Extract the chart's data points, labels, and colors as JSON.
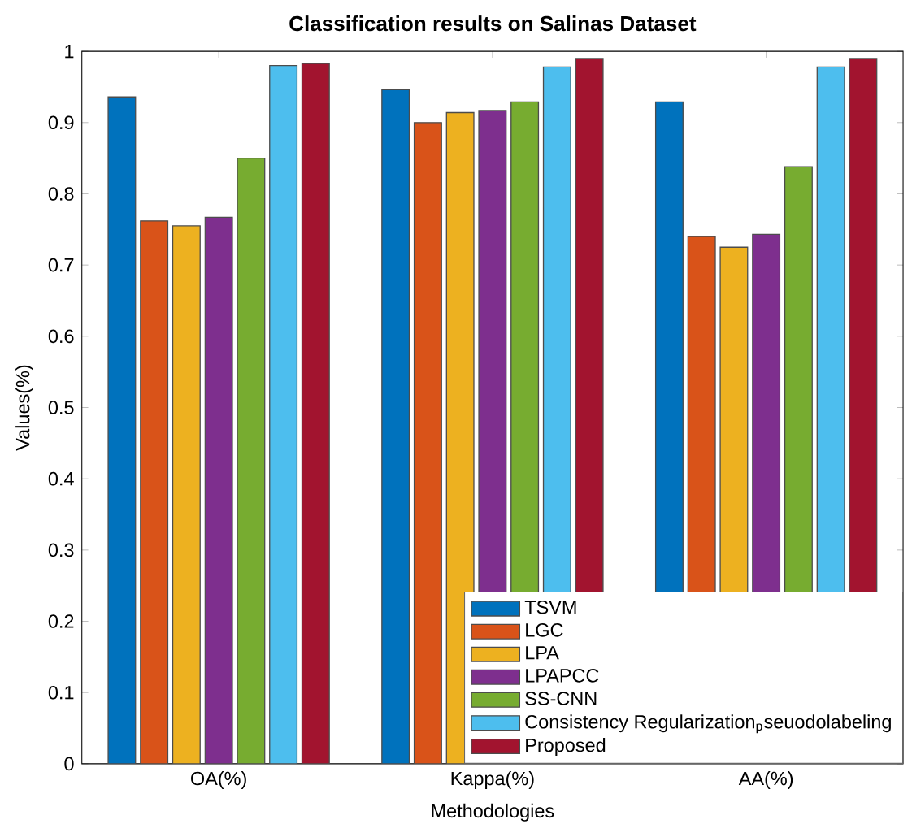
{
  "chart_data": {
    "type": "bar",
    "title": "Classification results on Salinas Dataset",
    "xlabel": "Methodologies",
    "ylabel": "Values(%)",
    "categories": [
      "OA(%)",
      "Kappa(%)",
      "AA(%)"
    ],
    "series": [
      {
        "name": "TSVM",
        "color": "#0072bd",
        "values": [
          0.936,
          0.946,
          0.929
        ]
      },
      {
        "name": "LGC",
        "color": "#d95319",
        "values": [
          0.762,
          0.9,
          0.74
        ]
      },
      {
        "name": "LPA",
        "color": "#edb120",
        "values": [
          0.755,
          0.914,
          0.725
        ]
      },
      {
        "name": "LPAPCC",
        "color": "#7e2f8e",
        "values": [
          0.767,
          0.917,
          0.743
        ]
      },
      {
        "name": "SS-CNN",
        "color": "#77ac30",
        "values": [
          0.85,
          0.929,
          0.838
        ]
      },
      {
        "name": "Consistency  Regularization$_{p}$seuodolabeling",
        "color": "#4dbeee",
        "values": [
          0.98,
          0.978,
          0.978
        ]
      },
      {
        "name": "Proposed",
        "color": "#a2142f",
        "values": [
          0.983,
          0.99,
          0.99
        ]
      }
    ],
    "ylim": [
      0,
      1
    ],
    "yticks": [
      0,
      0.1,
      0.2,
      0.3,
      0.4,
      0.5,
      0.6,
      0.7,
      0.8,
      0.9,
      1
    ],
    "grid": false,
    "legend": "bottom right"
  }
}
